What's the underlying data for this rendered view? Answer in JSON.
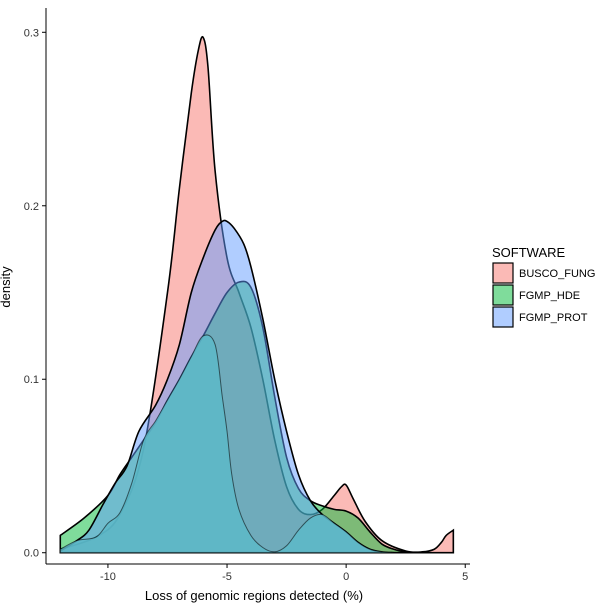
{
  "chart_data": {
    "type": "area",
    "title": "",
    "xlabel": "Loss of genomic regions detected (%)",
    "ylabel": "density",
    "xlim": [
      -12.6,
      5.2
    ],
    "ylim": [
      -0.0065,
      0.314
    ],
    "x_ticks": [
      -10,
      -5,
      0,
      5
    ],
    "x_tick_labels": [
      "-10",
      "-5",
      "0",
      "5"
    ],
    "y_ticks": [
      0.0,
      0.1,
      0.2,
      0.3
    ],
    "y_tick_labels": [
      "0.0",
      "0.1",
      "0.2",
      "0.3"
    ],
    "grid": false,
    "legend": {
      "title": "SOFTWARE",
      "position": "right"
    },
    "series": [
      {
        "name": "BUSCO_FUNGI",
        "color": "#F8766D",
        "x": [
          -12.0,
          -10.5,
          -9.5,
          -8.5,
          -7.5,
          -7.0,
          -6.5,
          -6.2,
          -6.0,
          -5.8,
          -5.5,
          -5.0,
          -4.5,
          -4.0,
          -3.5,
          -3.0,
          -2.5,
          -2.0,
          -1.5,
          -1.0,
          -0.5,
          -0.2,
          0.0,
          0.3,
          0.8,
          1.5,
          2.5,
          3.2,
          3.7,
          4.0,
          4.2,
          4.5
        ],
        "y": [
          0.002,
          0.009,
          0.022,
          0.06,
          0.15,
          0.21,
          0.265,
          0.29,
          0.297,
          0.28,
          0.22,
          0.17,
          0.15,
          0.13,
          0.1,
          0.065,
          0.038,
          0.025,
          0.022,
          0.025,
          0.033,
          0.038,
          0.039,
          0.031,
          0.018,
          0.007,
          0.001,
          0.0005,
          0.002,
          0.006,
          0.01,
          0.013
        ]
      },
      {
        "name": "FGMP_HDE",
        "color": "#00BA38",
        "x": [
          -12.0,
          -11.0,
          -10.0,
          -9.5,
          -9.0,
          -8.5,
          -8.0,
          -7.5,
          -7.0,
          -6.5,
          -6.0,
          -5.5,
          -5.0,
          -4.5,
          -4.0,
          -3.5,
          -3.0,
          -2.5,
          -2.0,
          -1.5,
          -1.0,
          -0.5,
          0.0,
          0.5,
          1.0,
          1.5,
          2.0,
          2.5,
          3.0
        ],
        "y": [
          0.01,
          0.02,
          0.033,
          0.045,
          0.055,
          0.065,
          0.075,
          0.088,
          0.1,
          0.113,
          0.125,
          0.138,
          0.15,
          0.156,
          0.153,
          0.13,
          0.09,
          0.055,
          0.037,
          0.03,
          0.027,
          0.025,
          0.024,
          0.02,
          0.012,
          0.005,
          0.002,
          0.0005,
          0.0
        ]
      },
      {
        "name": "FGMP_PROT",
        "color": "#619CFF",
        "x": [
          -12.0,
          -11.3,
          -10.8,
          -10.2,
          -9.7,
          -9.2,
          -8.7,
          -8.0,
          -7.5,
          -7.0,
          -6.5,
          -6.0,
          -5.5,
          -5.2,
          -5.0,
          -4.7,
          -4.3,
          -4.0,
          -3.5,
          -3.0,
          -2.5,
          -2.0,
          -1.5,
          -1.0,
          -0.5,
          0.0,
          0.5,
          1.0,
          1.5,
          2.0
        ],
        "y": [
          0.001,
          0.007,
          0.013,
          0.028,
          0.04,
          0.05,
          0.07,
          0.085,
          0.1,
          0.12,
          0.15,
          0.17,
          0.186,
          0.191,
          0.191,
          0.187,
          0.178,
          0.165,
          0.135,
          0.1,
          0.07,
          0.045,
          0.03,
          0.022,
          0.017,
          0.012,
          0.006,
          0.002,
          0.0005,
          0.0
        ]
      },
      {
        "name": "",
        "color": "#5DB8C8",
        "x": [
          -12.0,
          -11.3,
          -10.5,
          -10.0,
          -9.5,
          -9.0,
          -8.5,
          -8.0,
          -7.5,
          -7.0,
          -6.5,
          -6.0,
          -5.5,
          -5.2,
          -5.0,
          -4.8,
          -4.5,
          -4.0,
          -3.5,
          -3.0,
          -2.5,
          -2.0,
          -1.5,
          -1.0,
          -0.5,
          0.0,
          0.5,
          1.0,
          1.5,
          2.0
        ],
        "y": [
          0.002,
          0.007,
          0.009,
          0.017,
          0.023,
          0.04,
          0.065,
          0.076,
          0.088,
          0.1,
          0.113,
          0.125,
          0.12,
          0.09,
          0.07,
          0.045,
          0.025,
          0.01,
          0.003,
          0.0005,
          0.004,
          0.013,
          0.02,
          0.022,
          0.017,
          0.012,
          0.006,
          0.002,
          0.0005,
          0.0
        ]
      }
    ]
  }
}
